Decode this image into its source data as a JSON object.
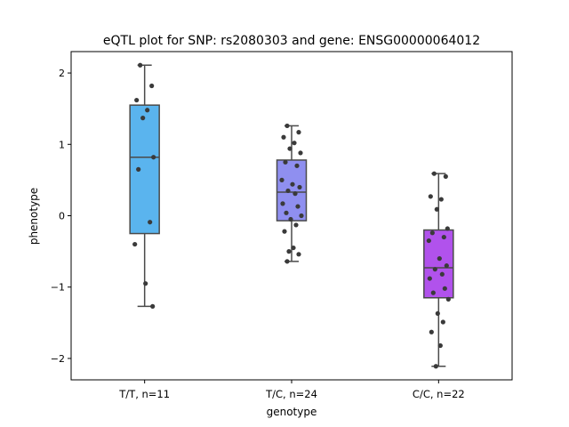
{
  "chart_data": {
    "type": "box",
    "title": "eQTL plot for SNP: rs2080303 and gene: ENSG00000064012",
    "xlabel": "genotype",
    "ylabel": "phenotype",
    "ylim": [
      -2.3,
      2.3
    ],
    "yticks": [
      -2,
      -1,
      0,
      1,
      2
    ],
    "grid": false,
    "legend": "none",
    "groups": [
      {
        "label": "T/T, n=11",
        "color": "#5ab4ee",
        "whisker_low": -1.27,
        "q1": -0.25,
        "median": 0.82,
        "q3": 1.55,
        "whisker_high": 2.11,
        "points": [
          2.11,
          1.82,
          1.62,
          1.48,
          1.37,
          0.82,
          0.65,
          -0.09,
          -0.4,
          -0.95,
          -1.27
        ]
      },
      {
        "label": "T/C, n=24",
        "color": "#8f8ff0",
        "whisker_low": -0.64,
        "q1": -0.07,
        "median": 0.33,
        "q3": 0.78,
        "whisker_high": 1.26,
        "points": [
          1.26,
          1.17,
          1.1,
          1.02,
          0.94,
          0.88,
          0.75,
          0.7,
          0.5,
          0.44,
          0.4,
          0.35,
          0.31,
          0.17,
          0.13,
          0.04,
          0.0,
          -0.05,
          -0.13,
          -0.22,
          -0.45,
          -0.5,
          -0.54,
          -0.64
        ]
      },
      {
        "label": "C/C, n=22",
        "color": "#b152ec",
        "whisker_low": -2.11,
        "q1": -1.15,
        "median": -0.73,
        "q3": -0.2,
        "whisker_high": 0.59,
        "points": [
          0.59,
          0.55,
          0.27,
          0.23,
          0.09,
          -0.18,
          -0.24,
          -0.3,
          -0.35,
          -0.6,
          -0.7,
          -0.75,
          -0.82,
          -0.88,
          -1.02,
          -1.08,
          -1.17,
          -1.37,
          -1.49,
          -1.63,
          -1.82,
          -2.11
        ]
      }
    ]
  }
}
